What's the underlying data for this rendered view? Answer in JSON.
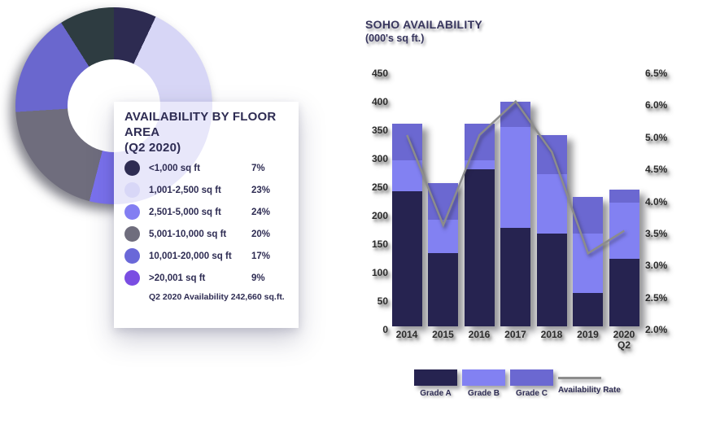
{
  "donut_card": {
    "title_line1": "AVAILABILITY BY FLOOR AREA",
    "title_line2": "(Q2 2020)",
    "footer": "Q2 2020 Availability 242,660 sq.ft.",
    "items": [
      {
        "label": "<1,000 sq ft",
        "value": "7%",
        "dot_color": "#2e2c52",
        "donut_color": "#2d2b51"
      },
      {
        "label": "1,001-2,500 sq ft",
        "value": "23%",
        "dot_color": "#d8d7f7",
        "donut_color": "#d7d6f6"
      },
      {
        "label": "2,501-5,000 sq ft",
        "value": "24%",
        "dot_color": "#837ef2",
        "donut_color": "#7a71ee"
      },
      {
        "label": "5,001-10,000 sq ft",
        "value": "20%",
        "dot_color": "#6f6d7d",
        "donut_color": "#6f6d7d"
      },
      {
        "label": "10,001-20,000 sq ft",
        "value": "17%",
        "dot_color": "#6a68d8",
        "donut_color": "#6a67ce"
      },
      {
        "label": ">20,001 sq ft",
        "value": "9%",
        "dot_color": "#7a4de2",
        "donut_color": "#2e3c41"
      }
    ]
  },
  "soho_chart": {
    "title": "SOHO AVAILABILITY",
    "subtitle": "(000's sq ft.)",
    "left_axis_labels": [
      "450",
      "400",
      "350",
      "300",
      "250",
      "200",
      "150",
      "100",
      "50",
      "0"
    ],
    "right_axis_labels": [
      "6.5%",
      "6.0%",
      "5.0%",
      "4.5%",
      "4.0%",
      "3.5%",
      "3.0%",
      "2.5%",
      "2.0%"
    ],
    "x_labels": [
      "2014",
      "2015",
      "2016",
      "2017",
      "2018",
      "2019",
      "2020|Q2"
    ],
    "legend": [
      {
        "label": "Grade A",
        "swatch": "rect",
        "color": "#262350"
      },
      {
        "label": "Grade B",
        "swatch": "rect",
        "color": "#8281f2"
      },
      {
        "label": "Grade C",
        "swatch": "rect",
        "color": "#6b68d1"
      },
      {
        "label": "Availability Rate",
        "swatch": "line",
        "color": "#8c8c8c"
      }
    ]
  },
  "chart_data": [
    {
      "type": "pie",
      "subtype": "donut",
      "title": "AVAILABILITY BY FLOOR AREA (Q2 2020)",
      "labels": [
        "<1,000 sq ft",
        "1,001-2,500 sq ft",
        "2,501-5,000 sq ft",
        "5,001-10,000 sq ft",
        "10,001-20,000 sq ft",
        ">20,001 sq ft"
      ],
      "values": [
        7,
        23,
        24,
        20,
        17,
        9
      ],
      "unit": "%",
      "annotation": "Q2 2020 Availability 242,660 sq.ft.",
      "legend_position": "right-card"
    },
    {
      "type": "bar",
      "subtype": "stacked-bars-with-line",
      "title": "SOHO AVAILABILITY (000's sq ft.)",
      "categories": [
        "2014",
        "2015",
        "2016",
        "2017",
        "2018",
        "2019",
        "2020 Q2"
      ],
      "series": [
        {
          "name": "Grade A",
          "type": "bar",
          "values": [
            240,
            130,
            280,
            175,
            165,
            60,
            120
          ]
        },
        {
          "name": "Grade B",
          "type": "bar",
          "values": [
            55,
            60,
            15,
            180,
            105,
            105,
            100
          ]
        },
        {
          "name": "Grade C",
          "type": "bar",
          "values": [
            65,
            65,
            65,
            45,
            70,
            65,
            23
          ]
        },
        {
          "name": "Availability Rate",
          "type": "line",
          "axis": "right",
          "unit": "%",
          "values": [
            5.4,
            3.8,
            5.4,
            6.0,
            5.1,
            3.3,
            3.7
          ]
        }
      ],
      "stacked": true,
      "xlabel": "",
      "ylabel": "000's sq ft",
      "left_axis": {
        "min": 0,
        "max": 450,
        "tick_step": 50
      },
      "right_axis": {
        "min": 2.0,
        "max": 6.5,
        "tick_labels_shown": [
          "6.5%",
          "6.0%",
          "5.0%",
          "4.5%",
          "4.0%",
          "3.5%",
          "3.0%",
          "2.5%",
          "2.0%"
        ]
      },
      "grid": false,
      "legend_position": "bottom"
    }
  ]
}
